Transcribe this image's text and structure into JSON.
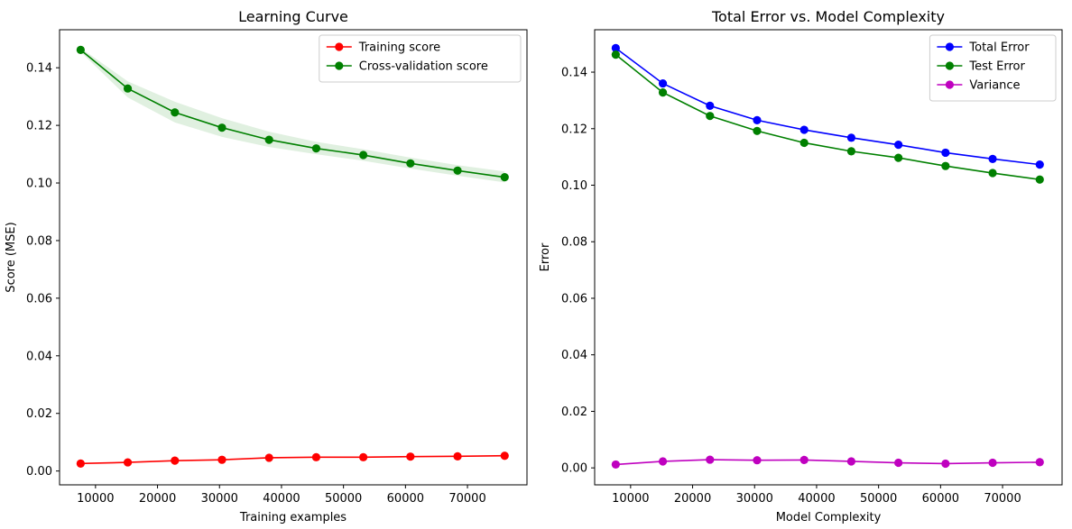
{
  "chart_data": [
    {
      "type": "line",
      "title": "Learning Curve",
      "xlabel": "Training examples",
      "ylabel": "Score (MSE)",
      "xlim": [
        4200,
        79600
      ],
      "ylim": [
        -0.0048,
        0.1532
      ],
      "xticks": [
        10000,
        20000,
        30000,
        40000,
        50000,
        60000,
        70000
      ],
      "xtick_labels": [
        "10000",
        "20000",
        "30000",
        "40000",
        "50000",
        "60000",
        "70000"
      ],
      "yticks": [
        0.0,
        0.02,
        0.04,
        0.06,
        0.08,
        0.1,
        0.12,
        0.14
      ],
      "ytick_labels": [
        "0.00",
        "0.02",
        "0.04",
        "0.06",
        "0.08",
        "0.10",
        "0.12",
        "0.14"
      ],
      "legend_position": "top-right",
      "x": [
        7600,
        15200,
        22800,
        30400,
        38000,
        45600,
        53200,
        60800,
        68400,
        76000
      ],
      "series": [
        {
          "name": "Training score",
          "color": "#ff0000",
          "values": [
            0.0026,
            0.003,
            0.0036,
            0.0039,
            0.0046,
            0.0048,
            0.0048,
            0.005,
            0.0051,
            0.0053
          ]
        },
        {
          "name": "Cross-validation score",
          "color": "#008000",
          "values": [
            0.1462,
            0.1328,
            0.1245,
            0.1192,
            0.115,
            0.112,
            0.1097,
            0.1068,
            0.1043,
            0.102
          ],
          "band_lower": [
            0.1455,
            0.1297,
            0.121,
            0.116,
            0.1125,
            0.11,
            0.1077,
            0.105,
            0.1025,
            0.1002
          ],
          "band_upper": [
            0.1469,
            0.1353,
            0.1282,
            0.1225,
            0.1178,
            0.1143,
            0.1117,
            0.1088,
            0.1062,
            0.104
          ],
          "band_color": "#008000"
        }
      ]
    },
    {
      "type": "line",
      "title": "Total Error vs. Model Complexity",
      "xlabel": "Model Complexity",
      "ylabel": "Error",
      "xlim": [
        4200,
        79600
      ],
      "ylim": [
        -0.006,
        0.155
      ],
      "xticks": [
        10000,
        20000,
        30000,
        40000,
        50000,
        60000,
        70000
      ],
      "xtick_labels": [
        "10000",
        "20000",
        "30000",
        "40000",
        "50000",
        "60000",
        "70000"
      ],
      "yticks": [
        0.0,
        0.02,
        0.04,
        0.06,
        0.08,
        0.1,
        0.12,
        0.14
      ],
      "ytick_labels": [
        "0.00",
        "0.02",
        "0.04",
        "0.06",
        "0.08",
        "0.10",
        "0.12",
        "0.14"
      ],
      "legend_position": "top-right",
      "x": [
        7600,
        15200,
        22800,
        30400,
        38000,
        45600,
        53200,
        60800,
        68400,
        76000
      ],
      "series": [
        {
          "name": "Total Error",
          "color": "#0000ff",
          "values": [
            0.1485,
            0.136,
            0.1281,
            0.123,
            0.1196,
            0.1168,
            0.1143,
            0.1115,
            0.1093,
            0.1073
          ]
        },
        {
          "name": "Test Error",
          "color": "#008000",
          "values": [
            0.1462,
            0.1328,
            0.1245,
            0.1192,
            0.115,
            0.112,
            0.1097,
            0.1068,
            0.1043,
            0.102
          ]
        },
        {
          "name": "Variance",
          "color": "#bf00bf",
          "values": [
            0.0012,
            0.0023,
            0.0029,
            0.0027,
            0.0028,
            0.0023,
            0.0018,
            0.0015,
            0.0018,
            0.002
          ]
        }
      ]
    }
  ]
}
